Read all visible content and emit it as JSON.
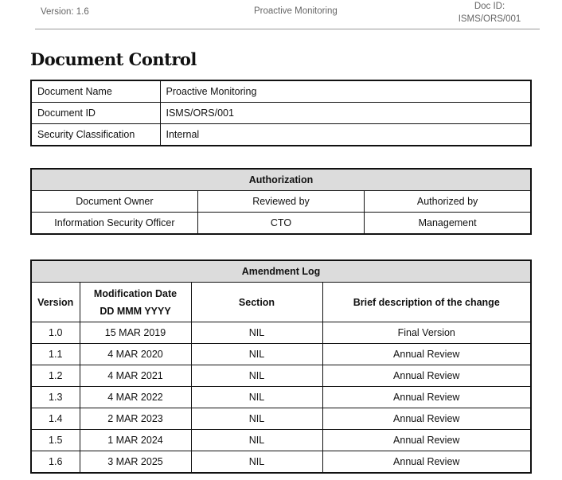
{
  "header": {
    "version": "Version: 1.6",
    "title": "Proactive Monitoring",
    "doc_id_label": "Doc ID:",
    "doc_id": "ISMS/ORS/001"
  },
  "heading": "Document Control",
  "info": [
    {
      "label": "Document Name",
      "value": "Proactive Monitoring"
    },
    {
      "label": "Document ID",
      "value": "ISMS/ORS/001"
    },
    {
      "label": "Security Classification",
      "value": "Internal"
    }
  ],
  "authorization": {
    "title": "Authorization",
    "headers": [
      "Document Owner",
      "Reviewed by",
      "Authorized by"
    ],
    "values": [
      "Information Security Officer",
      "CTO",
      "Management"
    ]
  },
  "amendment": {
    "title": "Amendment Log",
    "headers": [
      "Version",
      "Modification Date",
      "DD MMM YYYY",
      "Section",
      "Brief description of the change"
    ],
    "rows": [
      [
        "1.0",
        "15 MAR 2019",
        "NIL",
        "Final Version"
      ],
      [
        "1.1",
        "4 MAR 2020",
        "NIL",
        "Annual Review"
      ],
      [
        "1.2",
        "4 MAR 2021",
        "NIL",
        "Annual Review"
      ],
      [
        "1.3",
        "4 MAR 2022",
        "NIL",
        "Annual Review"
      ],
      [
        "1.4",
        "2 MAR 2023",
        "NIL",
        "Annual Review"
      ],
      [
        "1.5",
        "1 MAR 2024",
        "NIL",
        "Annual Review"
      ],
      [
        "1.6",
        "3 MAR 2025",
        "NIL",
        "Annual Review"
      ]
    ]
  }
}
